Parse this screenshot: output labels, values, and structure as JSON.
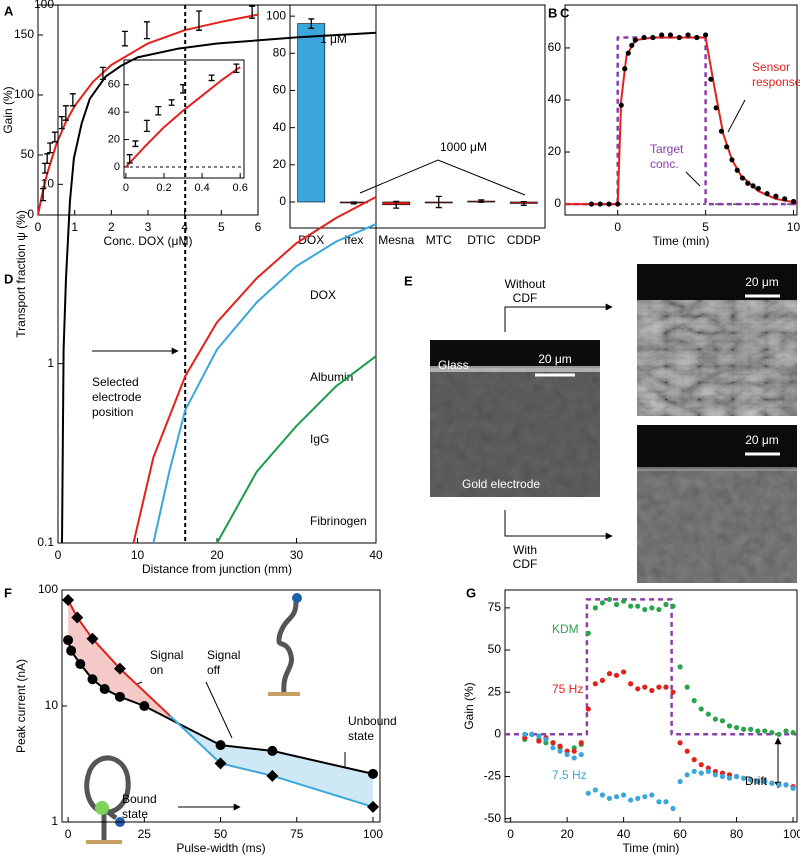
{
  "chart_data": [
    {
      "type": "line",
      "label": "A",
      "xlim": [
        0,
        6
      ],
      "ylim": [
        0,
        175
      ],
      "xticks": [
        0,
        1,
        2,
        3,
        4,
        5,
        6
      ],
      "yticks": [
        0,
        50,
        100,
        150
      ],
      "xlabel": "Conc. DOX (μM)",
      "ylabel": "Gain (%)",
      "series": [
        {
          "color": "#e2211c",
          "line": true,
          "x": [
            0,
            0.1,
            0.25,
            0.5,
            0.75,
            1,
            1.5,
            2,
            3,
            4,
            5,
            6
          ],
          "values": [
            0,
            15.4,
            34.5,
            58.8,
            76.9,
            90.9,
            111,
            125,
            143,
            154,
            161,
            167
          ]
        },
        {
          "color": "#000000",
          "line": false,
          "x": [
            0.14,
            0.19,
            0.25,
            0.33,
            0.46,
            0.65,
            0.76,
            0.95,
            1.77,
            2.37,
            2.97,
            4.39,
            5.84
          ],
          "values": [
            17,
            39,
            47,
            56,
            65,
            77,
            85,
            96,
            118,
            147,
            154,
            162,
            169
          ],
          "errors": [
            5,
            4,
            4,
            4,
            4,
            5,
            6,
            5,
            5,
            6,
            7,
            8,
            5
          ]
        }
      ]
    },
    {
      "type": "line",
      "xlim": [
        -0.01,
        0.62
      ],
      "ylim": [
        -8,
        78
      ],
      "xticks": [
        0,
        0.2,
        0.4,
        0.6
      ],
      "yticks": [
        0,
        20,
        40,
        60
      ],
      "zero_line": true,
      "series": [
        {
          "color": "#e2211c",
          "line": true,
          "x": [
            0,
            0.1,
            0.2,
            0.3,
            0.4,
            0.5,
            0.6
          ],
          "values": [
            0,
            15,
            29,
            41,
            52,
            63,
            73
          ]
        },
        {
          "color": "#000000",
          "line": false,
          "x": [
            0.02,
            0.05,
            0.11,
            0.17,
            0.24,
            0.3,
            0.45,
            0.58
          ],
          "values": [
            6,
            17,
            30,
            41,
            47,
            57,
            65,
            72
          ],
          "errors": [
            3,
            2,
            4,
            3,
            2,
            3,
            2,
            3
          ]
        }
      ]
    },
    {
      "type": "bar",
      "label": "B",
      "categories": [
        "DOX",
        "Ifex",
        "Mesna",
        "MTC",
        "DTIC",
        "CDDP"
      ],
      "values": [
        96,
        -0.5,
        -1.5,
        0,
        0.5,
        -0.8
      ],
      "errors": [
        2.5,
        0.5,
        1.8,
        3,
        0.6,
        1
      ],
      "colors": [
        "#3aa6dc",
        "#e2211c",
        "#e2211c",
        "#e2211c",
        "#e2211c",
        "#e2211c"
      ],
      "ylim": [
        -14,
        106
      ],
      "yticks": [
        0,
        20,
        40,
        60,
        80,
        100
      ],
      "annotations": [
        {
          "text": [
            "1 μM"
          ],
          "color": "#000000"
        },
        {
          "text": [
            "1000 μM"
          ],
          "color": "#000000"
        }
      ]
    },
    {
      "type": "line",
      "label": "C",
      "xlim": [
        -3,
        10.2
      ],
      "ylim": [
        -4.2,
        76.5
      ],
      "xticks": [
        0,
        5,
        10
      ],
      "yticks": [
        0,
        20,
        40,
        60
      ],
      "xlabel": "Time (min)",
      "zero_line": true,
      "series": [
        {
          "color": "#8b3ea8",
          "line": true,
          "dash": true,
          "x": [
            -3,
            0,
            0,
            5,
            5,
            10.2
          ],
          "values": [
            0,
            0,
            64,
            64,
            0,
            0
          ]
        },
        {
          "color": "#e2211c",
          "line": true,
          "x": [
            -3,
            0,
            0.2,
            0.5,
            1,
            2,
            5,
            5.5,
            6,
            6.5,
            7,
            8,
            9,
            10.2
          ],
          "values": [
            0,
            0,
            40,
            57,
            63,
            64,
            64,
            45,
            27,
            17,
            11,
            5,
            2,
            0.5
          ]
        },
        {
          "color": "#000000",
          "line": false,
          "marker": "dot",
          "x": [
            -1.5,
            -1,
            -0.5,
            0,
            0.2,
            0.4,
            0.6,
            0.8,
            1,
            1.5,
            2,
            2.5,
            3,
            3.5,
            4,
            4.5,
            5,
            5.3,
            5.6,
            5.9,
            6.2,
            6.5,
            6.8,
            7.1,
            7.4,
            7.7,
            8,
            8.5,
            9,
            9.5,
            10
          ],
          "values": [
            0,
            0,
            0,
            0,
            38,
            52,
            58,
            61,
            63,
            64,
            64,
            65,
            65,
            64,
            65,
            64,
            65,
            48,
            37,
            28,
            22,
            17,
            13,
            10,
            8,
            7,
            6,
            4,
            3,
            2,
            1
          ]
        }
      ],
      "annotations": [
        {
          "text": [
            "Sensor",
            "response"
          ],
          "color": "#e2211c"
        },
        {
          "text": [
            "Target",
            "conc."
          ],
          "color": "#8b3ea8"
        }
      ]
    },
    {
      "type": "line",
      "label": "D",
      "xlim": [
        0,
        40
      ],
      "ylim": [
        0.1,
        100
      ],
      "ylog": true,
      "xticks": [
        0,
        10,
        20,
        30,
        40
      ],
      "yticks": [
        0.1,
        1,
        10,
        100
      ],
      "xlabel": "Distance from junction (mm)",
      "ylabel": "Transport fraction ψ (%)",
      "position": 16,
      "series": [
        {
          "name": "DOX",
          "color": "#000000",
          "line": true,
          "x": [
            0.5,
            0.7,
            1,
            1.5,
            2,
            3,
            4,
            6,
            8,
            10,
            15,
            20,
            30,
            40
          ],
          "values": [
            0.1,
            1.2,
            3,
            8,
            14,
            22,
            30,
            40,
            46,
            51,
            57,
            61,
            66,
            70
          ]
        },
        {
          "name": "Albumin",
          "color": "#e2211c",
          "line": true,
          "x": [
            9.5,
            12,
            16,
            20,
            25,
            30,
            35,
            40
          ],
          "values": [
            0.1,
            0.3,
            0.85,
            1.7,
            3,
            4.7,
            6.5,
            8.5
          ]
        },
        {
          "name": "IgG",
          "color": "#3aa6dc",
          "line": true,
          "x": [
            12,
            14,
            16,
            20,
            25,
            30,
            35,
            40
          ],
          "values": [
            0.1,
            0.25,
            0.55,
            1.2,
            2.2,
            3.5,
            4.8,
            6
          ]
        },
        {
          "name": "Fibrinogen",
          "color": "#1a9d49",
          "line": true,
          "x": [
            20,
            25,
            30,
            35,
            40
          ],
          "values": [
            0.1,
            0.25,
            0.45,
            0.75,
            1.1
          ]
        }
      ],
      "annotations": [
        {
          "text": [
            "Selected",
            "electrode",
            "position"
          ],
          "color": "#000000"
        }
      ]
    },
    {
      "type": "line",
      "label": "F",
      "xlim": [
        -2,
        102.3
      ],
      "ylim": [
        1,
        100
      ],
      "ylog": true,
      "xticks": [
        0,
        25,
        50,
        75,
        100
      ],
      "yticks": [
        1,
        10,
        100
      ],
      "xlabel": "Pulse-width (ms)",
      "ylabel": "Peak current (nA)",
      "fills": [
        "#f6c9c9",
        "#cfe8f5"
      ],
      "series": [
        {
          "color": "#000000",
          "line": true,
          "marker": "circle",
          "x": [
            0,
            1,
            4,
            8,
            12,
            17,
            25,
            50,
            67,
            100
          ],
          "values": [
            37,
            30,
            23,
            17,
            14,
            12,
            10,
            4.6,
            4.1,
            2.6
          ]
        },
        {
          "colors": [
            "#e2211c",
            "#3aa6dc"
          ],
          "marker_color": "#000000",
          "line": true,
          "marker": "diamond",
          "x": [
            0,
            3,
            8,
            17,
            50,
            67,
            100
          ],
          "values": [
            82,
            58,
            38,
            21,
            3.2,
            2.5,
            1.35
          ]
        }
      ],
      "annotations": [
        {
          "text": [
            "Signal",
            "on"
          ],
          "color": "#000000"
        },
        {
          "text": [
            "Signal",
            "off"
          ],
          "color": "#000000"
        },
        {
          "text": [
            "Unbound",
            "state"
          ],
          "color": "#000000"
        },
        {
          "text": [
            "Bound",
            "state"
          ],
          "color": "#000000"
        }
      ]
    },
    {
      "type": "line",
      "label": "G",
      "xlim": [
        -2,
        101.4
      ],
      "ylim": [
        -52,
        85.6
      ],
      "xticks": [
        0,
        20,
        40,
        60,
        80,
        100
      ],
      "yticks": [
        -50,
        -25,
        0,
        25,
        50,
        75
      ],
      "xlabel": "Time (min)",
      "ylabel": "Gain (%)",
      "series": [
        {
          "color": "#8b3ea8",
          "line": true,
          "dash": true,
          "x": [
            -2,
            27,
            27,
            57,
            57,
            101.4
          ],
          "values": [
            0,
            0,
            80,
            80,
            0,
            0
          ]
        },
        {
          "name": "KDM",
          "color": "#2aa44a",
          "line": false,
          "marker": "dot",
          "x": [
            5,
            7.5,
            10,
            12.5,
            15,
            17.5,
            20,
            22.5,
            25,
            27.5,
            30,
            32.5,
            35,
            37.5,
            40,
            42.5,
            45,
            47.5,
            50,
            52.5,
            55,
            57.5,
            60,
            62.5,
            65,
            67.5,
            70,
            72.5,
            75,
            77.5,
            80,
            82.5,
            85,
            87.5,
            90,
            92.5,
            95,
            97.5,
            100
          ],
          "values": [
            -3,
            0,
            -3,
            -5,
            -5,
            -8,
            -10,
            -8,
            -6,
            60,
            75,
            78,
            80,
            77,
            79,
            76,
            76,
            74,
            75,
            74,
            77,
            76,
            40,
            28,
            20,
            15,
            12,
            9,
            8,
            5,
            4,
            3,
            3,
            2,
            2,
            1,
            0,
            2,
            1
          ]
        },
        {
          "name": "75 Hz",
          "color": "#e2211c",
          "line": false,
          "marker": "dot",
          "x": [
            5,
            7.5,
            10,
            12.5,
            15,
            17.5,
            20,
            22.5,
            25,
            27.5,
            30,
            32.5,
            35,
            37.5,
            40,
            42.5,
            45,
            47.5,
            50,
            52.5,
            55,
            57.5,
            60,
            62.5,
            65,
            67.5,
            70,
            72.5,
            75,
            77.5,
            80,
            82.5,
            85,
            87.5,
            90,
            92.5,
            95,
            97.5,
            100
          ],
          "values": [
            -2,
            0,
            -4,
            -2,
            -5,
            -7,
            -10,
            -10,
            -5,
            15,
            30,
            32,
            36,
            35,
            37,
            30,
            27,
            28,
            26,
            28,
            28,
            25,
            -5,
            -10,
            -15,
            -18,
            -20,
            -22,
            -23,
            -24,
            -25,
            -26,
            -27,
            -28,
            -28,
            -29,
            -30,
            -30,
            -31
          ]
        },
        {
          "name": "7.5 Hz",
          "color": "#3aa6dc",
          "line": false,
          "marker": "dot",
          "x": [
            5,
            7.5,
            10,
            12.5,
            15,
            17.5,
            20,
            22.5,
            25,
            27.5,
            30,
            32.5,
            35,
            37.5,
            40,
            42.5,
            45,
            47.5,
            50,
            52.5,
            55,
            57.5,
            60,
            62.5,
            65,
            67.5,
            70,
            72.5,
            75,
            77.5,
            80,
            82.5,
            85,
            87.5,
            90,
            92.5,
            95,
            97.5,
            100
          ],
          "values": [
            0,
            0,
            -1,
            -3,
            -8,
            -10,
            -12,
            -14,
            -12,
            -35,
            -33,
            -36,
            -38,
            -37,
            -36,
            -39,
            -38,
            -37,
            -36,
            -40,
            -40,
            -44,
            -28,
            -24,
            -22,
            -23,
            -22,
            -24,
            -25,
            -26,
            -25,
            -26,
            -27,
            -28,
            -28,
            -29,
            -30,
            -30,
            -32
          ]
        }
      ],
      "annotations": [
        {
          "text": [
            "Drift"
          ],
          "color": "#000000"
        }
      ]
    }
  ],
  "panel_e": {
    "label": "E",
    "top_caption": [
      "Without",
      "CDF"
    ],
    "bottom_caption": [
      "With",
      "CDF"
    ],
    "glass": "Glass",
    "electrode": "Gold electrode",
    "scale_bars": [
      "20 μm",
      "20 μm",
      "20 μm"
    ]
  }
}
